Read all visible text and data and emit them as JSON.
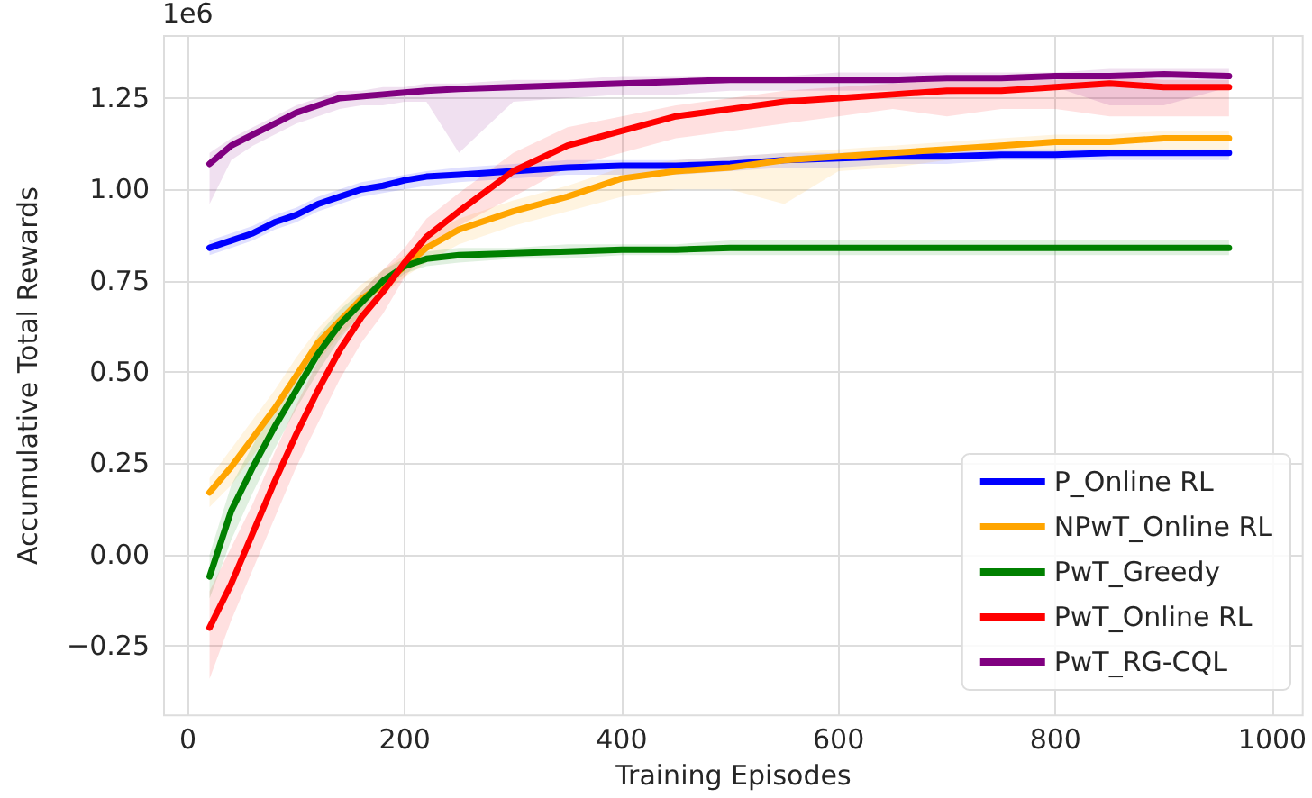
{
  "chart_data": {
    "type": "line",
    "xlabel": "Training Episodes",
    "ylabel": "Accumulative Total Rewards",
    "annotations": [
      "1e6"
    ],
    "x": [
      20,
      40,
      60,
      80,
      100,
      120,
      140,
      160,
      180,
      200,
      220,
      250,
      300,
      350,
      400,
      450,
      500,
      550,
      600,
      650,
      700,
      750,
      800,
      850,
      900,
      960
    ],
    "series": [
      {
        "name": "P_Online RL",
        "color": "#0000ff",
        "values": [
          0.84,
          0.86,
          0.88,
          0.91,
          0.93,
          0.96,
          0.98,
          1.0,
          1.01,
          1.025,
          1.035,
          1.04,
          1.05,
          1.06,
          1.065,
          1.065,
          1.07,
          1.08,
          1.085,
          1.09,
          1.09,
          1.095,
          1.095,
          1.1,
          1.1,
          1.1
        ],
        "lower": [
          0.82,
          0.84,
          0.86,
          0.89,
          0.91,
          0.94,
          0.96,
          0.98,
          0.99,
          1.0,
          1.01,
          1.02,
          1.03,
          1.04,
          1.04,
          1.04,
          1.05,
          1.06,
          1.06,
          1.07,
          1.07,
          1.08,
          1.08,
          1.08,
          1.08,
          1.08
        ],
        "upper": [
          0.86,
          0.88,
          0.9,
          0.93,
          0.95,
          0.98,
          1.0,
          1.02,
          1.03,
          1.04,
          1.05,
          1.06,
          1.07,
          1.08,
          1.08,
          1.08,
          1.09,
          1.1,
          1.1,
          1.11,
          1.11,
          1.11,
          1.11,
          1.11,
          1.11,
          1.11
        ]
      },
      {
        "name": "NPwT_Online RL",
        "color": "#ffa500",
        "values": [
          0.17,
          0.24,
          0.32,
          0.4,
          0.49,
          0.58,
          0.64,
          0.7,
          0.74,
          0.79,
          0.84,
          0.89,
          0.94,
          0.98,
          1.03,
          1.05,
          1.06,
          1.08,
          1.09,
          1.1,
          1.11,
          1.12,
          1.13,
          1.13,
          1.14,
          1.14
        ],
        "lower": [
          0.13,
          0.19,
          0.27,
          0.35,
          0.44,
          0.53,
          0.6,
          0.66,
          0.71,
          0.76,
          0.8,
          0.85,
          0.9,
          0.94,
          0.98,
          1.0,
          1.0,
          0.96,
          1.05,
          1.06,
          1.08,
          1.09,
          1.1,
          1.1,
          1.11,
          1.11
        ],
        "upper": [
          0.21,
          0.29,
          0.37,
          0.45,
          0.54,
          0.62,
          0.68,
          0.74,
          0.78,
          0.82,
          0.87,
          0.92,
          0.97,
          1.01,
          1.06,
          1.08,
          1.09,
          1.1,
          1.11,
          1.12,
          1.13,
          1.14,
          1.15,
          1.15,
          1.16,
          1.16
        ]
      },
      {
        "name": "PwT_Greedy",
        "color": "#008000",
        "values": [
          -0.06,
          0.12,
          0.24,
          0.35,
          0.45,
          0.55,
          0.63,
          0.69,
          0.75,
          0.79,
          0.81,
          0.82,
          0.825,
          0.83,
          0.835,
          0.835,
          0.84,
          0.84,
          0.84,
          0.84,
          0.84,
          0.84,
          0.84,
          0.84,
          0.84,
          0.84
        ],
        "lower": [
          -0.12,
          0.04,
          0.17,
          0.29,
          0.4,
          0.5,
          0.59,
          0.66,
          0.72,
          0.77,
          0.79,
          0.8,
          0.81,
          0.81,
          0.82,
          0.82,
          0.82,
          0.82,
          0.82,
          0.82,
          0.82,
          0.82,
          0.82,
          0.82,
          0.82,
          0.82
        ],
        "upper": [
          0.0,
          0.19,
          0.3,
          0.41,
          0.5,
          0.6,
          0.67,
          0.72,
          0.78,
          0.81,
          0.83,
          0.84,
          0.84,
          0.85,
          0.85,
          0.85,
          0.86,
          0.86,
          0.86,
          0.86,
          0.86,
          0.86,
          0.86,
          0.86,
          0.86,
          0.86
        ]
      },
      {
        "name": "PwT_Online RL",
        "color": "#ff0000",
        "values": [
          -0.2,
          -0.08,
          0.06,
          0.2,
          0.33,
          0.45,
          0.56,
          0.65,
          0.72,
          0.8,
          0.87,
          0.94,
          1.05,
          1.12,
          1.16,
          1.2,
          1.22,
          1.24,
          1.25,
          1.26,
          1.27,
          1.27,
          1.28,
          1.29,
          1.28,
          1.28
        ],
        "lower": [
          -0.34,
          -0.18,
          -0.04,
          0.1,
          0.24,
          0.36,
          0.48,
          0.58,
          0.66,
          0.76,
          0.83,
          0.9,
          0.98,
          1.06,
          1.1,
          1.14,
          1.16,
          1.18,
          1.2,
          1.22,
          1.2,
          1.22,
          1.22,
          1.2,
          1.2,
          1.2
        ],
        "upper": [
          -0.1,
          0.02,
          0.14,
          0.28,
          0.41,
          0.53,
          0.64,
          0.72,
          0.78,
          0.84,
          0.92,
          0.99,
          1.1,
          1.17,
          1.2,
          1.23,
          1.25,
          1.27,
          1.28,
          1.29,
          1.3,
          1.3,
          1.3,
          1.31,
          1.3,
          1.3
        ]
      },
      {
        "name": "PwT_RG-CQL",
        "color": "#800080",
        "values": [
          1.07,
          1.12,
          1.15,
          1.18,
          1.21,
          1.23,
          1.25,
          1.255,
          1.26,
          1.265,
          1.27,
          1.275,
          1.28,
          1.285,
          1.29,
          1.295,
          1.3,
          1.3,
          1.3,
          1.3,
          1.305,
          1.305,
          1.31,
          1.31,
          1.315,
          1.31
        ],
        "lower": [
          0.96,
          1.08,
          1.12,
          1.15,
          1.18,
          1.2,
          1.22,
          1.23,
          1.23,
          1.24,
          1.24,
          1.1,
          1.24,
          1.25,
          1.26,
          1.26,
          1.27,
          1.27,
          1.27,
          1.27,
          1.26,
          1.27,
          1.28,
          1.23,
          1.23,
          1.28
        ],
        "upper": [
          1.1,
          1.14,
          1.17,
          1.2,
          1.23,
          1.25,
          1.27,
          1.27,
          1.28,
          1.28,
          1.29,
          1.29,
          1.3,
          1.3,
          1.31,
          1.31,
          1.31,
          1.31,
          1.32,
          1.32,
          1.32,
          1.32,
          1.32,
          1.33,
          1.33,
          1.33
        ]
      }
    ],
    "xlim": [
      -22,
      1028
    ],
    "xticks": [
      0,
      200,
      400,
      600,
      800,
      1000
    ],
    "ylim": [
      -0.44,
      1.42
    ],
    "yticks": [
      {
        "value": -0.25,
        "label": "−0.25"
      },
      {
        "value": 0,
        "label": "0.00"
      },
      {
        "value": 0.25,
        "label": "0.25"
      },
      {
        "value": 0.5,
        "label": "0.50"
      },
      {
        "value": 0.75,
        "label": "0.75"
      },
      {
        "value": 1,
        "label": "1.00"
      },
      {
        "value": 1.25,
        "label": "1.25"
      }
    ],
    "grid": true,
    "legend": "bottom right",
    "marker": "none",
    "line_style": "solid"
  }
}
